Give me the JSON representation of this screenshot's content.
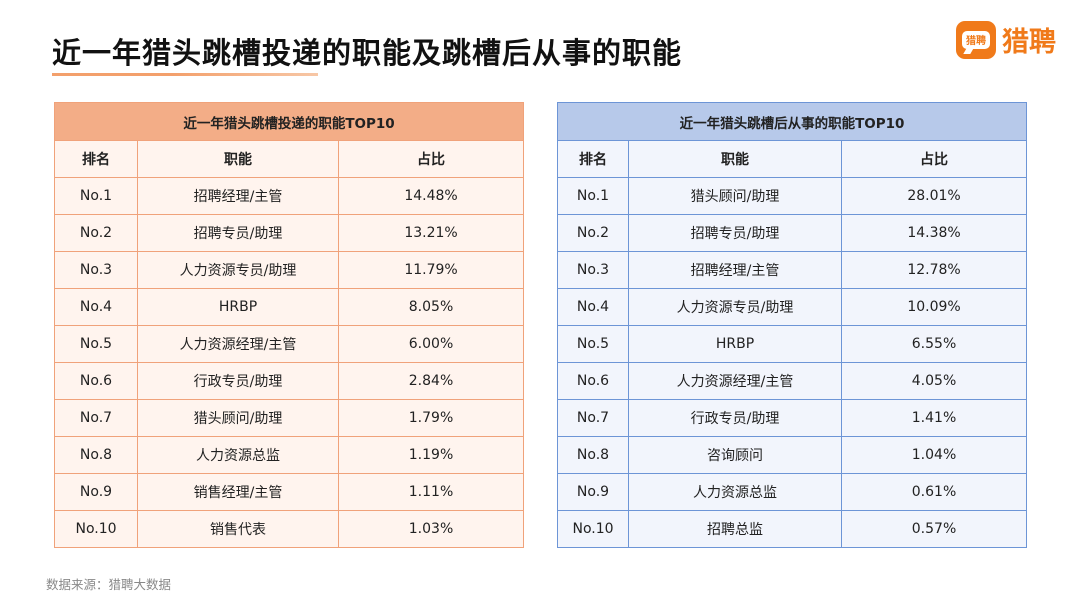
{
  "title": "近一年猎头跳槽投递的职能及跳槽后从事的职能",
  "logo": {
    "badge_text": "猎聘",
    "text": "猎聘"
  },
  "colors": {
    "accent": "#f07a1a",
    "left_header": "#f3ad87",
    "right_header": "#b7c9ea"
  },
  "left_table": {
    "caption": "近一年猎头跳槽投递的职能TOP10",
    "headers": [
      "排名",
      "职能",
      "占比"
    ],
    "rows": [
      [
        "No.1",
        "招聘经理/主管",
        "14.48%"
      ],
      [
        "No.2",
        "招聘专员/助理",
        "13.21%"
      ],
      [
        "No.3",
        "人力资源专员/助理",
        "11.79%"
      ],
      [
        "No.4",
        "HRBP",
        "8.05%"
      ],
      [
        "No.5",
        "人力资源经理/主管",
        "6.00%"
      ],
      [
        "No.6",
        "行政专员/助理",
        "2.84%"
      ],
      [
        "No.7",
        "猎头顾问/助理",
        "1.79%"
      ],
      [
        "No.8",
        "人力资源总监",
        "1.19%"
      ],
      [
        "No.9",
        "销售经理/主管",
        "1.11%"
      ],
      [
        "No.10",
        "销售代表",
        "1.03%"
      ]
    ]
  },
  "right_table": {
    "caption": "近一年猎头跳槽后从事的职能TOP10",
    "headers": [
      "排名",
      "职能",
      "占比"
    ],
    "rows": [
      [
        "No.1",
        "猎头顾问/助理",
        "28.01%"
      ],
      [
        "No.2",
        "招聘专员/助理",
        "14.38%"
      ],
      [
        "No.3",
        "招聘经理/主管",
        "12.78%"
      ],
      [
        "No.4",
        "人力资源专员/助理",
        "10.09%"
      ],
      [
        "No.5",
        "HRBP",
        "6.55%"
      ],
      [
        "No.6",
        "人力资源经理/主管",
        "4.05%"
      ],
      [
        "No.7",
        "行政专员/助理",
        "1.41%"
      ],
      [
        "No.8",
        "咨询顾问",
        "1.04%"
      ],
      [
        "No.9",
        "人力资源总监",
        "0.61%"
      ],
      [
        "No.10",
        "招聘总监",
        "0.57%"
      ]
    ]
  },
  "source": "数据来源：猎聘大数据"
}
